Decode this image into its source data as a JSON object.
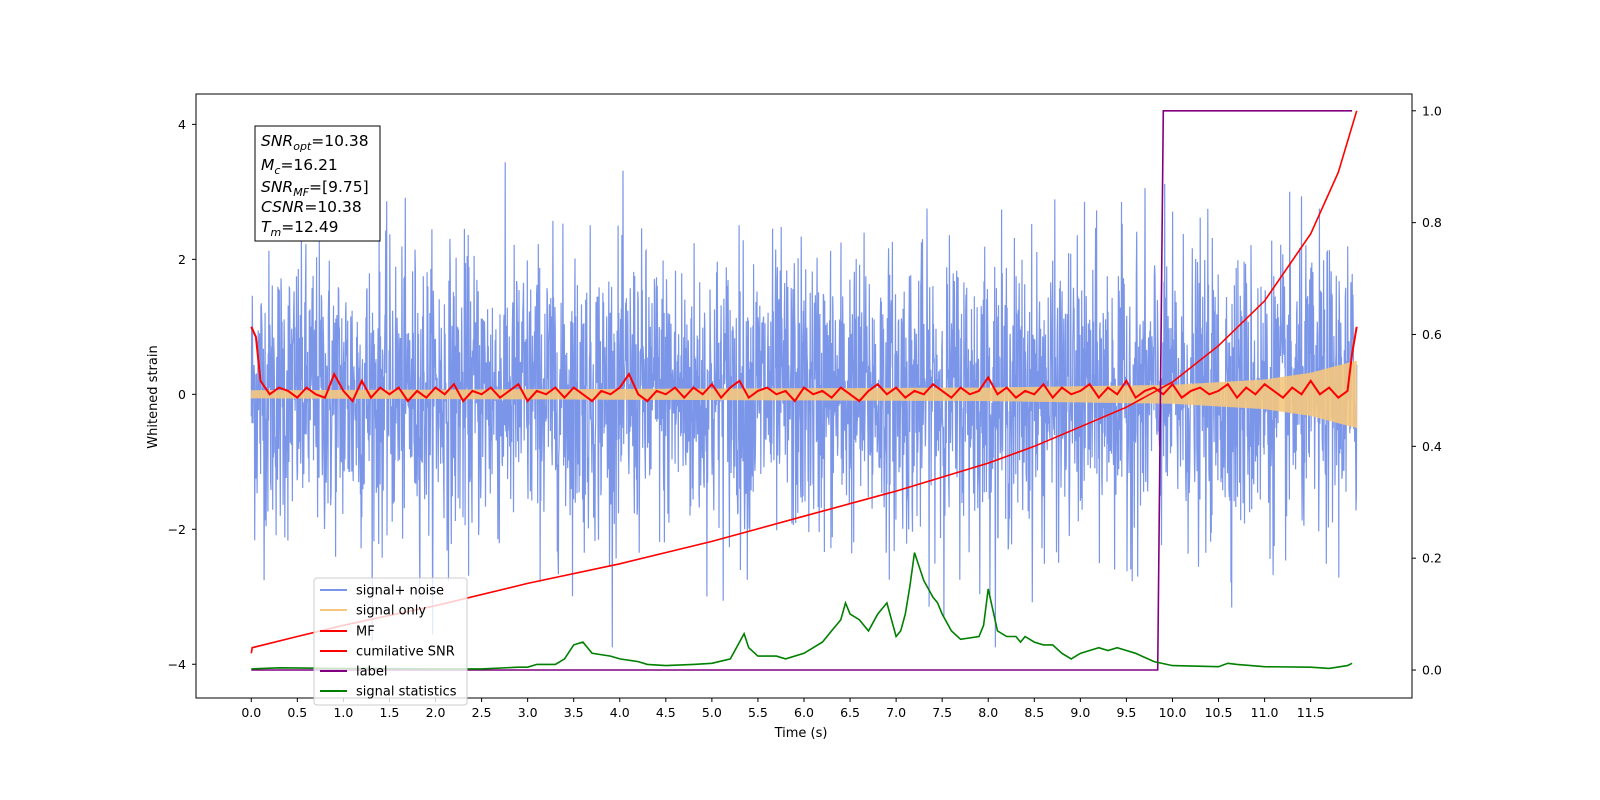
{
  "chart_data": {
    "type": "line",
    "xlabel": "Time (s)",
    "ylabel": "Whitened strain",
    "xlim": [
      -0.6,
      12.6
    ],
    "ylim": [
      -4.5,
      4.45
    ],
    "y2lim": [
      -0.05,
      1.03
    ],
    "x_ticks": [
      "0.0",
      "0.5",
      "1.0",
      "1.5",
      "2.0",
      "2.5",
      "3.0",
      "3.5",
      "4.0",
      "4.5",
      "5.0",
      "5.5",
      "6.0",
      "6.5",
      "7.0",
      "7.5",
      "8.0",
      "8.5",
      "9.0",
      "9.5",
      "10.0",
      "10.5",
      "11.0",
      "11.5"
    ],
    "y_ticks": [
      "4",
      "2",
      "0",
      "−2",
      "−4"
    ],
    "y2_ticks": [
      "1.0",
      "0.8",
      "0.6",
      "0.4",
      "0.2",
      "0.0"
    ],
    "grid": false,
    "legend_position": "lower-left",
    "annotation": {
      "snr_opt": {
        "sym": "SNR",
        "sub": "opt",
        "val": "=10.38"
      },
      "mc": {
        "sym": "M",
        "sub": "c",
        "val": "=16.21"
      },
      "snr_mf": {
        "sym": "SNR",
        "sub": "MF",
        "val": "=[9.75]"
      },
      "csnr": {
        "sym": "CSNR",
        "sub": "",
        "val": "=10.38"
      },
      "tm": {
        "sym": "T",
        "sub": "m",
        "val": "=12.49"
      }
    },
    "series": [
      {
        "name": "signal+ noise",
        "color": "#7b96e8",
        "axis": "left",
        "description_stats": {
          "min": -3.75,
          "max": 4.0,
          "std": 1.0,
          "t_start": 0.0,
          "t_end": 12.0
        }
      },
      {
        "name": "signal only",
        "color": "#f5c77e",
        "axis": "left",
        "envelope": {
          "t": [
            0,
            4,
            8,
            10,
            11,
            11.5,
            12.0
          ],
          "amp": [
            0.06,
            0.08,
            0.1,
            0.14,
            0.22,
            0.32,
            0.5
          ]
        }
      },
      {
        "name": "MF",
        "color": "#ff0000",
        "axis": "left",
        "points": [
          [
            0.0,
            1.0
          ],
          [
            0.05,
            0.85
          ],
          [
            0.1,
            0.2
          ],
          [
            0.2,
            0.0
          ],
          [
            0.3,
            0.1
          ],
          [
            0.4,
            0.05
          ],
          [
            0.5,
            -0.05
          ],
          [
            0.6,
            0.1
          ],
          [
            0.7,
            0.0
          ],
          [
            0.8,
            -0.05
          ],
          [
            0.9,
            0.3
          ],
          [
            1.0,
            0.05
          ],
          [
            1.1,
            -0.1
          ],
          [
            1.2,
            0.2
          ],
          [
            1.3,
            -0.05
          ],
          [
            1.4,
            0.1
          ],
          [
            1.5,
            0.0
          ],
          [
            1.6,
            0.1
          ],
          [
            1.7,
            -0.1
          ],
          [
            1.8,
            0.05
          ],
          [
            1.9,
            -0.05
          ],
          [
            2.0,
            0.1
          ],
          [
            2.1,
            0.0
          ],
          [
            2.2,
            0.15
          ],
          [
            2.3,
            -0.1
          ],
          [
            2.4,
            0.05
          ],
          [
            2.5,
            0.0
          ],
          [
            2.6,
            0.1
          ],
          [
            2.7,
            -0.05
          ],
          [
            2.8,
            0.05
          ],
          [
            2.9,
            0.15
          ],
          [
            3.0,
            -0.1
          ],
          [
            3.1,
            0.05
          ],
          [
            3.2,
            0.0
          ],
          [
            3.3,
            0.1
          ],
          [
            3.4,
            -0.05
          ],
          [
            3.5,
            0.1
          ],
          [
            3.6,
            0.0
          ],
          [
            3.7,
            -0.1
          ],
          [
            3.8,
            0.05
          ],
          [
            3.9,
            0.0
          ],
          [
            4.0,
            0.1
          ],
          [
            4.1,
            0.3
          ],
          [
            4.2,
            0.0
          ],
          [
            4.3,
            -0.1
          ],
          [
            4.4,
            0.05
          ],
          [
            4.5,
            0.0
          ],
          [
            4.6,
            0.1
          ],
          [
            4.7,
            -0.05
          ],
          [
            4.8,
            0.1
          ],
          [
            4.9,
            0.0
          ],
          [
            5.0,
            0.15
          ],
          [
            5.1,
            -0.05
          ],
          [
            5.2,
            0.1
          ],
          [
            5.3,
            0.2
          ],
          [
            5.4,
            -0.05
          ],
          [
            5.5,
            0.05
          ],
          [
            5.6,
            0.1
          ],
          [
            5.7,
            0.0
          ],
          [
            5.8,
            0.05
          ],
          [
            5.9,
            -0.1
          ],
          [
            6.0,
            0.1
          ],
          [
            6.1,
            0.0
          ],
          [
            6.2,
            0.05
          ],
          [
            6.3,
            -0.05
          ],
          [
            6.4,
            0.1
          ],
          [
            6.5,
            0.0
          ],
          [
            6.6,
            -0.1
          ],
          [
            6.7,
            0.05
          ],
          [
            6.8,
            0.15
          ],
          [
            6.9,
            0.0
          ],
          [
            7.0,
            0.1
          ],
          [
            7.1,
            -0.05
          ],
          [
            7.2,
            0.05
          ],
          [
            7.3,
            0.0
          ],
          [
            7.4,
            0.15
          ],
          [
            7.5,
            0.05
          ],
          [
            7.6,
            -0.05
          ],
          [
            7.7,
            0.1
          ],
          [
            7.8,
            0.0
          ],
          [
            7.9,
            0.05
          ],
          [
            8.0,
            0.25
          ],
          [
            8.1,
            0.0
          ],
          [
            8.2,
            0.1
          ],
          [
            8.3,
            -0.05
          ],
          [
            8.4,
            0.05
          ],
          [
            8.5,
            0.0
          ],
          [
            8.6,
            0.15
          ],
          [
            8.7,
            -0.05
          ],
          [
            8.8,
            0.1
          ],
          [
            8.9,
            0.0
          ],
          [
            9.0,
            0.05
          ],
          [
            9.1,
            0.15
          ],
          [
            9.2,
            -0.05
          ],
          [
            9.3,
            0.1
          ],
          [
            9.4,
            0.0
          ],
          [
            9.5,
            0.2
          ],
          [
            9.6,
            -0.05
          ],
          [
            9.7,
            0.05
          ],
          [
            9.8,
            0.1
          ],
          [
            9.9,
            0.0
          ],
          [
            10.0,
            0.15
          ],
          [
            10.1,
            -0.05
          ],
          [
            10.2,
            0.05
          ],
          [
            10.3,
            0.1
          ],
          [
            10.4,
            0.0
          ],
          [
            10.5,
            0.05
          ],
          [
            10.6,
            0.15
          ],
          [
            10.7,
            -0.05
          ],
          [
            10.8,
            0.1
          ],
          [
            10.9,
            0.0
          ],
          [
            11.0,
            0.15
          ],
          [
            11.1,
            0.05
          ],
          [
            11.2,
            -0.05
          ],
          [
            11.3,
            0.1
          ],
          [
            11.4,
            0.0
          ],
          [
            11.5,
            0.2
          ],
          [
            11.6,
            0.0
          ],
          [
            11.7,
            0.1
          ],
          [
            11.8,
            -0.05
          ],
          [
            11.9,
            0.05
          ],
          [
            11.95,
            0.6
          ],
          [
            12.0,
            1.0
          ]
        ]
      },
      {
        "name": "cumilative SNR",
        "color": "#ff0000",
        "axis": "right",
        "points": [
          [
            0.0,
            0.03
          ],
          [
            0.01,
            0.04
          ],
          [
            0.5,
            0.06
          ],
          [
            1.0,
            0.08
          ],
          [
            2.0,
            0.115
          ],
          [
            3.0,
            0.155
          ],
          [
            4.0,
            0.19
          ],
          [
            5.0,
            0.23
          ],
          [
            6.0,
            0.275
          ],
          [
            7.0,
            0.32
          ],
          [
            8.0,
            0.37
          ],
          [
            8.5,
            0.4
          ],
          [
            9.0,
            0.435
          ],
          [
            9.5,
            0.47
          ],
          [
            10.0,
            0.515
          ],
          [
            10.5,
            0.58
          ],
          [
            11.0,
            0.66
          ],
          [
            11.5,
            0.78
          ],
          [
            11.8,
            0.89
          ],
          [
            12.0,
            1.0
          ]
        ]
      },
      {
        "name": "label",
        "color": "#800080",
        "axis": "right",
        "points": [
          [
            0.0,
            0.0
          ],
          [
            9.84,
            0.0
          ],
          [
            9.9,
            1.0
          ],
          [
            11.95,
            1.0
          ]
        ]
      },
      {
        "name": "signal statistics",
        "color": "#008000",
        "axis": "right",
        "points": [
          [
            0.0,
            0.002
          ],
          [
            0.3,
            0.004
          ],
          [
            1.0,
            0.003
          ],
          [
            2.0,
            0.002
          ],
          [
            2.5,
            0.002
          ],
          [
            2.9,
            0.005
          ],
          [
            3.0,
            0.005
          ],
          [
            3.1,
            0.01
          ],
          [
            3.3,
            0.01
          ],
          [
            3.4,
            0.02
          ],
          [
            3.5,
            0.045
          ],
          [
            3.6,
            0.05
          ],
          [
            3.7,
            0.03
          ],
          [
            3.9,
            0.025
          ],
          [
            4.0,
            0.02
          ],
          [
            4.2,
            0.015
          ],
          [
            4.3,
            0.01
          ],
          [
            4.5,
            0.008
          ],
          [
            4.8,
            0.01
          ],
          [
            5.0,
            0.012
          ],
          [
            5.2,
            0.02
          ],
          [
            5.3,
            0.05
          ],
          [
            5.35,
            0.065
          ],
          [
            5.4,
            0.04
          ],
          [
            5.5,
            0.025
          ],
          [
            5.7,
            0.025
          ],
          [
            5.8,
            0.02
          ],
          [
            6.0,
            0.03
          ],
          [
            6.1,
            0.04
          ],
          [
            6.2,
            0.05
          ],
          [
            6.3,
            0.07
          ],
          [
            6.4,
            0.09
          ],
          [
            6.45,
            0.12
          ],
          [
            6.5,
            0.1
          ],
          [
            6.6,
            0.09
          ],
          [
            6.7,
            0.07
          ],
          [
            6.8,
            0.1
          ],
          [
            6.9,
            0.12
          ],
          [
            7.0,
            0.06
          ],
          [
            7.05,
            0.07
          ],
          [
            7.1,
            0.1
          ],
          [
            7.15,
            0.15
          ],
          [
            7.2,
            0.21
          ],
          [
            7.3,
            0.16
          ],
          [
            7.4,
            0.13
          ],
          [
            7.45,
            0.12
          ],
          [
            7.5,
            0.1
          ],
          [
            7.6,
            0.07
          ],
          [
            7.7,
            0.055
          ],
          [
            7.9,
            0.06
          ],
          [
            7.95,
            0.08
          ],
          [
            8.0,
            0.145
          ],
          [
            8.1,
            0.07
          ],
          [
            8.2,
            0.06
          ],
          [
            8.3,
            0.06
          ],
          [
            8.35,
            0.05
          ],
          [
            8.4,
            0.06
          ],
          [
            8.5,
            0.05
          ],
          [
            8.6,
            0.045
          ],
          [
            8.7,
            0.045
          ],
          [
            8.8,
            0.03
          ],
          [
            8.9,
            0.02
          ],
          [
            9.0,
            0.03
          ],
          [
            9.1,
            0.035
          ],
          [
            9.2,
            0.04
          ],
          [
            9.3,
            0.035
          ],
          [
            9.4,
            0.04
          ],
          [
            9.5,
            0.035
          ],
          [
            9.6,
            0.03
          ],
          [
            9.8,
            0.015
          ],
          [
            10.0,
            0.008
          ],
          [
            10.5,
            0.006
          ],
          [
            10.6,
            0.012
          ],
          [
            10.7,
            0.01
          ],
          [
            11.0,
            0.006
          ],
          [
            11.5,
            0.005
          ],
          [
            11.7,
            0.003
          ],
          [
            11.9,
            0.008
          ],
          [
            11.95,
            0.012
          ]
        ]
      }
    ]
  }
}
